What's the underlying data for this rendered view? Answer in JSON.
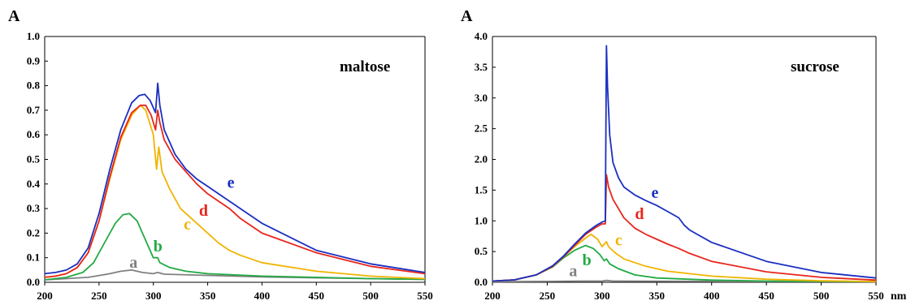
{
  "chart_data": [
    {
      "type": "line",
      "title": "maltose",
      "ylabel": "A",
      "xlabel": "",
      "xlim": [
        200,
        550
      ],
      "ylim": [
        0,
        1.0
      ],
      "x_ticks": [
        "200",
        "250",
        "300",
        "350",
        "400",
        "450",
        "500",
        "550"
      ],
      "y_ticks": [
        "0.0",
        "0.1",
        "0.2",
        "0.3",
        "0.4",
        "0.5",
        "0.6",
        "0.7",
        "0.8",
        "0.9",
        "1.0"
      ],
      "grid": false,
      "series": [
        {
          "name": "a",
          "color": "#808080",
          "label_at": [
            278,
            0.06
          ],
          "points": [
            [
              200,
              0.01
            ],
            [
              220,
              0.015
            ],
            [
              240,
              0.02
            ],
            [
              260,
              0.035
            ],
            [
              270,
              0.045
            ],
            [
              280,
              0.05
            ],
            [
              290,
              0.04
            ],
            [
              300,
              0.035
            ],
            [
              304,
              0.04
            ],
            [
              310,
              0.033
            ],
            [
              350,
              0.028
            ],
            [
              400,
              0.022
            ],
            [
              450,
              0.018
            ],
            [
              500,
              0.015
            ],
            [
              550,
              0.012
            ]
          ]
        },
        {
          "name": "b",
          "color": "#22aa44",
          "label_at": [
            300,
            0.125
          ],
          "points": [
            [
              200,
              0.01
            ],
            [
              220,
              0.02
            ],
            [
              235,
              0.04
            ],
            [
              245,
              0.08
            ],
            [
              255,
              0.16
            ],
            [
              265,
              0.24
            ],
            [
              272,
              0.275
            ],
            [
              278,
              0.28
            ],
            [
              285,
              0.25
            ],
            [
              292,
              0.18
            ],
            [
              300,
              0.1
            ],
            [
              304,
              0.1
            ],
            [
              306,
              0.08
            ],
            [
              315,
              0.06
            ],
            [
              330,
              0.045
            ],
            [
              350,
              0.035
            ],
            [
              400,
              0.025
            ],
            [
              450,
              0.02
            ],
            [
              500,
              0.015
            ],
            [
              550,
              0.012
            ]
          ]
        },
        {
          "name": "c",
          "color": "#f0b400",
          "label_at": [
            328,
            0.215
          ],
          "points": [
            [
              200,
              0.02
            ],
            [
              210,
              0.025
            ],
            [
              220,
              0.035
            ],
            [
              230,
              0.06
            ],
            [
              240,
              0.12
            ],
            [
              250,
              0.25
            ],
            [
              260,
              0.42
            ],
            [
              270,
              0.58
            ],
            [
              280,
              0.68
            ],
            [
              288,
              0.72
            ],
            [
              293,
              0.7
            ],
            [
              300,
              0.6
            ],
            [
              303,
              0.46
            ],
            [
              305,
              0.55
            ],
            [
              308,
              0.45
            ],
            [
              315,
              0.38
            ],
            [
              325,
              0.3
            ],
            [
              340,
              0.24
            ],
            [
              350,
              0.2
            ],
            [
              360,
              0.16
            ],
            [
              370,
              0.13
            ],
            [
              380,
              0.11
            ],
            [
              400,
              0.08
            ],
            [
              450,
              0.045
            ],
            [
              500,
              0.025
            ],
            [
              550,
              0.015
            ]
          ]
        },
        {
          "name": "d",
          "color": "#e8251c",
          "label_at": [
            342,
            0.27
          ],
          "points": [
            [
              200,
              0.02
            ],
            [
              210,
              0.025
            ],
            [
              220,
              0.035
            ],
            [
              230,
              0.06
            ],
            [
              240,
              0.12
            ],
            [
              250,
              0.25
            ],
            [
              260,
              0.43
            ],
            [
              270,
              0.59
            ],
            [
              280,
              0.69
            ],
            [
              288,
              0.72
            ],
            [
              293,
              0.72
            ],
            [
              298,
              0.68
            ],
            [
              302,
              0.62
            ],
            [
              304,
              0.7
            ],
            [
              306,
              0.65
            ],
            [
              310,
              0.58
            ],
            [
              320,
              0.5
            ],
            [
              330,
              0.45
            ],
            [
              340,
              0.4
            ],
            [
              350,
              0.36
            ],
            [
              360,
              0.33
            ],
            [
              370,
              0.3
            ],
            [
              380,
              0.26
            ],
            [
              400,
              0.2
            ],
            [
              450,
              0.12
            ],
            [
              500,
              0.065
            ],
            [
              550,
              0.035
            ]
          ]
        },
        {
          "name": "e",
          "color": "#1a2fc0",
          "label_at": [
            368,
            0.385
          ],
          "points": [
            [
              200,
              0.035
            ],
            [
              210,
              0.04
            ],
            [
              220,
              0.05
            ],
            [
              230,
              0.075
            ],
            [
              240,
              0.14
            ],
            [
              250,
              0.28
            ],
            [
              260,
              0.46
            ],
            [
              270,
              0.62
            ],
            [
              280,
              0.73
            ],
            [
              287,
              0.76
            ],
            [
              292,
              0.765
            ],
            [
              297,
              0.74
            ],
            [
              302,
              0.69
            ],
            [
              304,
              0.81
            ],
            [
              306,
              0.72
            ],
            [
              310,
              0.62
            ],
            [
              320,
              0.52
            ],
            [
              330,
              0.46
            ],
            [
              340,
              0.42
            ],
            [
              350,
              0.39
            ],
            [
              360,
              0.36
            ],
            [
              370,
              0.33
            ],
            [
              380,
              0.3
            ],
            [
              400,
              0.24
            ],
            [
              450,
              0.13
            ],
            [
              500,
              0.075
            ],
            [
              550,
              0.04
            ]
          ]
        }
      ]
    },
    {
      "type": "line",
      "title": "sucrose",
      "ylabel": "A",
      "xlabel": "nm",
      "xlim": [
        200,
        550
      ],
      "ylim": [
        0,
        4.0
      ],
      "x_ticks": [
        "200",
        "250",
        "300",
        "350",
        "400",
        "450",
        "500",
        "550"
      ],
      "y_ticks": [
        "0.0",
        "0.5",
        "1.0",
        "1.5",
        "2.0",
        "2.5",
        "3.0",
        "3.5",
        "4.0"
      ],
      "grid": false,
      "series": [
        {
          "name": "a",
          "color": "#808080",
          "label_at": [
            270,
            0.1
          ],
          "points": [
            [
              200,
              0.01
            ],
            [
              250,
              0.015
            ],
            [
              280,
              0.02
            ],
            [
              300,
              0.02
            ],
            [
              304,
              0.03
            ],
            [
              310,
              0.02
            ],
            [
              400,
              0.015
            ],
            [
              550,
              0.01
            ]
          ]
        },
        {
          "name": "b",
          "color": "#22aa44",
          "label_at": [
            282,
            0.28
          ],
          "points": [
            [
              200,
              0.02
            ],
            [
              220,
              0.04
            ],
            [
              240,
              0.12
            ],
            [
              255,
              0.25
            ],
            [
              265,
              0.4
            ],
            [
              275,
              0.52
            ],
            [
              285,
              0.6
            ],
            [
              292,
              0.55
            ],
            [
              298,
              0.45
            ],
            [
              302,
              0.35
            ],
            [
              304,
              0.38
            ],
            [
              307,
              0.3
            ],
            [
              315,
              0.22
            ],
            [
              330,
              0.12
            ],
            [
              350,
              0.07
            ],
            [
              400,
              0.035
            ],
            [
              450,
              0.02
            ],
            [
              550,
              0.01
            ]
          ]
        },
        {
          "name": "c",
          "color": "#f0b400",
          "label_at": [
            312,
            0.6
          ],
          "points": [
            [
              200,
              0.02
            ],
            [
              220,
              0.04
            ],
            [
              240,
              0.12
            ],
            [
              255,
              0.26
            ],
            [
              265,
              0.42
            ],
            [
              275,
              0.58
            ],
            [
              285,
              0.72
            ],
            [
              290,
              0.78
            ],
            [
              296,
              0.7
            ],
            [
              300,
              0.58
            ],
            [
              304,
              0.66
            ],
            [
              306,
              0.58
            ],
            [
              312,
              0.48
            ],
            [
              320,
              0.38
            ],
            [
              340,
              0.26
            ],
            [
              360,
              0.18
            ],
            [
              400,
              0.1
            ],
            [
              450,
              0.05
            ],
            [
              500,
              0.025
            ],
            [
              550,
              0.012
            ]
          ]
        },
        {
          "name": "d",
          "color": "#e8251c",
          "label_at": [
            330,
            1.03
          ],
          "points": [
            [
              200,
              0.02
            ],
            [
              220,
              0.04
            ],
            [
              240,
              0.12
            ],
            [
              255,
              0.26
            ],
            [
              265,
              0.42
            ],
            [
              275,
              0.6
            ],
            [
              285,
              0.78
            ],
            [
              295,
              0.9
            ],
            [
              300,
              0.95
            ],
            [
              303,
              0.95
            ],
            [
              304,
              1.75
            ],
            [
              306,
              1.55
            ],
            [
              310,
              1.35
            ],
            [
              320,
              1.05
            ],
            [
              330,
              0.88
            ],
            [
              340,
              0.78
            ],
            [
              350,
              0.7
            ],
            [
              360,
              0.62
            ],
            [
              370,
              0.55
            ],
            [
              380,
              0.47
            ],
            [
              400,
              0.34
            ],
            [
              450,
              0.17
            ],
            [
              500,
              0.08
            ],
            [
              550,
              0.035
            ]
          ]
        },
        {
          "name": "e",
          "color": "#1a2fc0",
          "label_at": [
            345,
            1.37
          ],
          "points": [
            [
              200,
              0.02
            ],
            [
              220,
              0.04
            ],
            [
              240,
              0.12
            ],
            [
              255,
              0.27
            ],
            [
              265,
              0.43
            ],
            [
              275,
              0.62
            ],
            [
              285,
              0.8
            ],
            [
              295,
              0.93
            ],
            [
              300,
              0.98
            ],
            [
              303,
              1.0
            ],
            [
              304,
              3.85
            ],
            [
              305,
              3.2
            ],
            [
              307,
              2.4
            ],
            [
              310,
              1.95
            ],
            [
              315,
              1.7
            ],
            [
              320,
              1.55
            ],
            [
              330,
              1.42
            ],
            [
              340,
              1.33
            ],
            [
              350,
              1.25
            ],
            [
              360,
              1.15
            ],
            [
              370,
              1.05
            ],
            [
              375,
              0.93
            ],
            [
              380,
              0.85
            ],
            [
              400,
              0.65
            ],
            [
              450,
              0.34
            ],
            [
              500,
              0.16
            ],
            [
              550,
              0.07
            ]
          ]
        }
      ]
    }
  ]
}
